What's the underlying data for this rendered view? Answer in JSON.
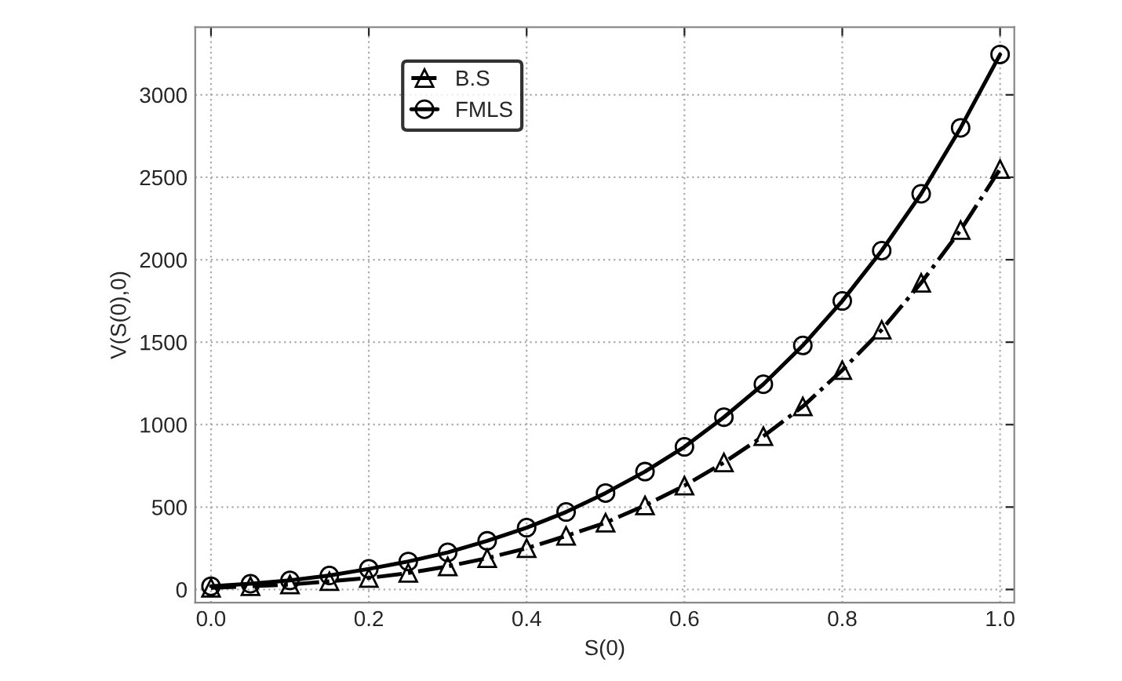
{
  "chart_data": {
    "type": "line",
    "xlabel": "S(0)",
    "ylabel": "V(S(0),0)",
    "x": [
      0,
      0.05,
      0.1,
      0.15,
      0.2,
      0.25,
      0.3,
      0.35,
      0.4,
      0.45,
      0.5,
      0.55,
      0.6,
      0.65,
      0.7,
      0.75,
      0.8,
      0.85,
      0.9,
      0.95,
      1.0
    ],
    "series": [
      {
        "name": "B.S",
        "color": "#000000",
        "marker": "triangle",
        "line_style": "dashed",
        "values": [
          10,
          20,
          30,
          50,
          70,
          100,
          140,
          190,
          250,
          325,
          405,
          510,
          630,
          770,
          930,
          1110,
          1330,
          1575,
          1860,
          2180,
          2550
        ]
      },
      {
        "name": "FMLS",
        "color": "#000000",
        "marker": "circle",
        "line_style": "solid",
        "values": [
          20,
          35,
          55,
          85,
          125,
          170,
          225,
          295,
          375,
          470,
          585,
          715,
          865,
          1045,
          1245,
          1480,
          1750,
          2055,
          2400,
          2800,
          3245
        ]
      }
    ],
    "xlim": [
      -0.02,
      1.018
    ],
    "ylim": [
      -80,
      3410
    ],
    "xticks": [
      {
        "value": 0,
        "label": "0.0"
      },
      0.2,
      0.4,
      0.6,
      0.8,
      {
        "value": 1,
        "label": "1.0"
      }
    ],
    "yticks": [
      0,
      500,
      1000,
      1500,
      2000,
      2500,
      3000
    ],
    "grid": true,
    "legend": "top left"
  }
}
